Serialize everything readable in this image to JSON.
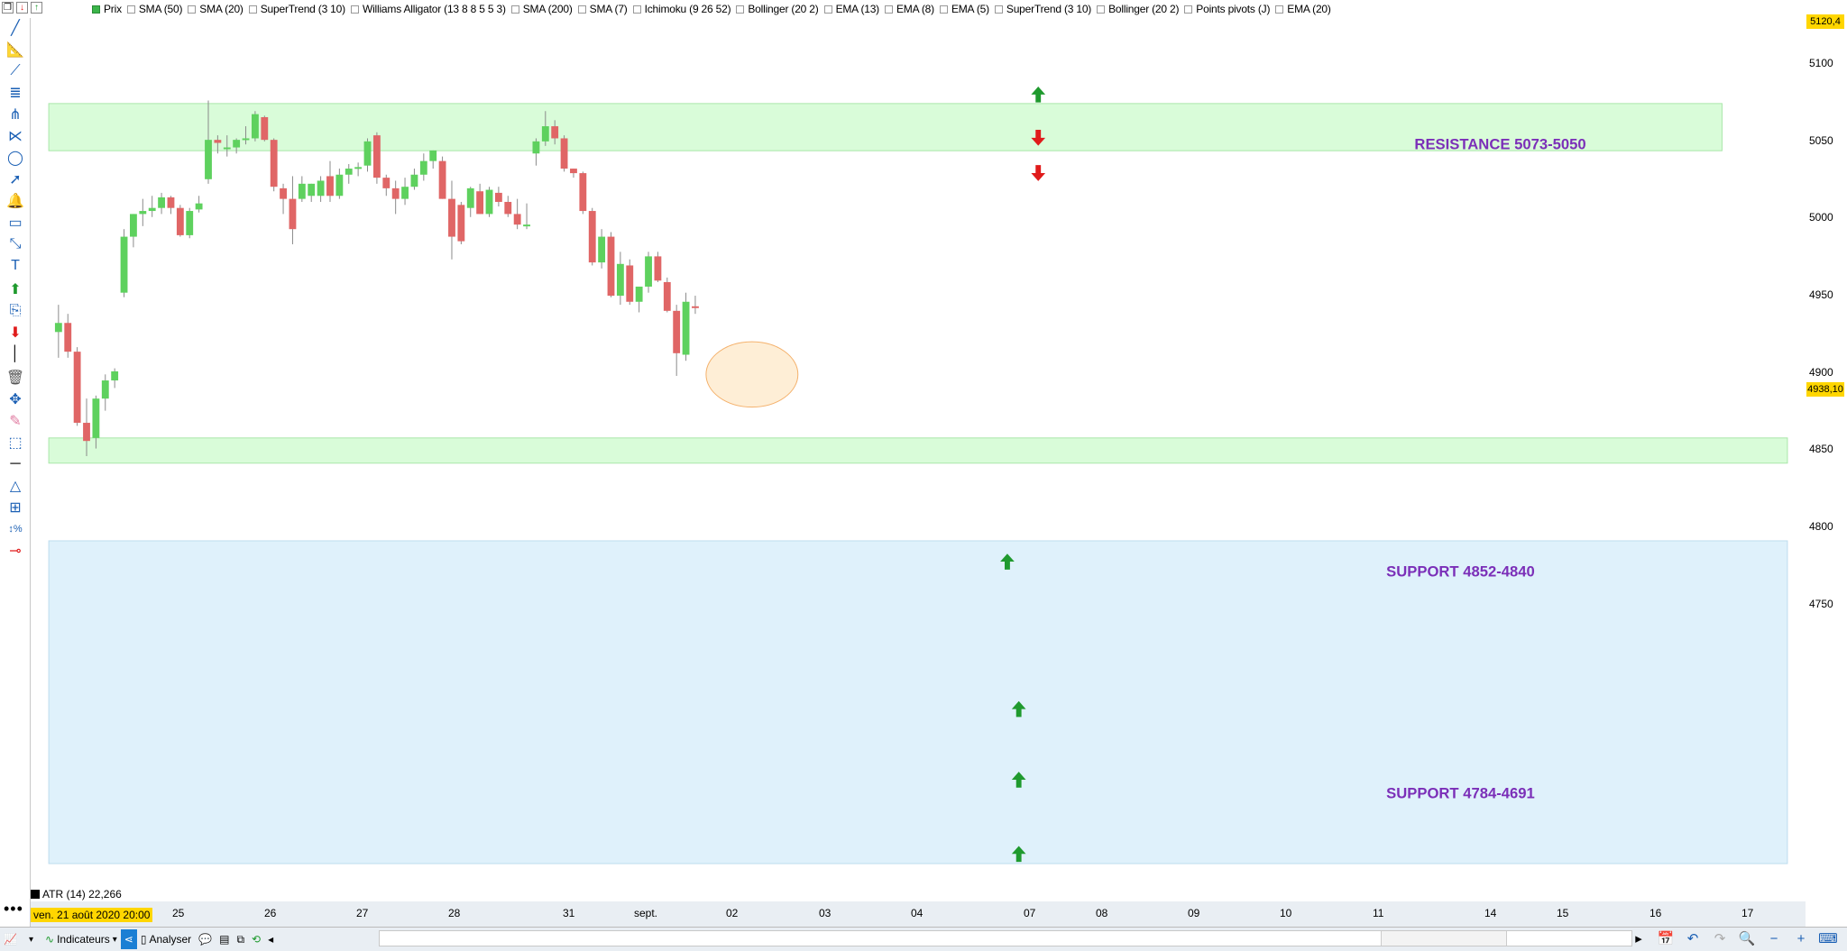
{
  "indicators": [
    {
      "label": "Prix",
      "checked": true
    },
    {
      "label": "SMA (50)",
      "checked": false
    },
    {
      "label": "SMA (20)",
      "checked": false
    },
    {
      "label": "SuperTrend (3 10)",
      "checked": false
    },
    {
      "label": "Williams Alligator (13 8 8 5 5 3)",
      "checked": false
    },
    {
      "label": "SMA (200)",
      "checked": false
    },
    {
      "label": "SMA (7)",
      "checked": false
    },
    {
      "label": "Ichimoku (9 26 52)",
      "checked": false
    },
    {
      "label": "Bollinger (20 2)",
      "checked": false
    },
    {
      "label": "EMA (13)",
      "checked": false
    },
    {
      "label": "EMA (8)",
      "checked": false
    },
    {
      "label": "EMA (5)",
      "checked": false
    },
    {
      "label": "SuperTrend (3 10)",
      "checked": false
    },
    {
      "label": "Bollinger (20 2)",
      "checked": false
    },
    {
      "label": "Points pivots (J)",
      "checked": false
    },
    {
      "label": "EMA (20)",
      "checked": false
    }
  ],
  "price_axis": {
    "labels": [
      "5100",
      "5050",
      "5000",
      "4950",
      "4900",
      "4850",
      "4800",
      "4750"
    ],
    "top_tag": "5120,4",
    "current_tag": "4938,10"
  },
  "time_axis": {
    "date_box": "ven. 21 août 2020 20:00",
    "labels": [
      "25",
      "26",
      "27",
      "28",
      "31",
      "sept.",
      "02",
      "03",
      "04",
      "07",
      "08",
      "09",
      "10",
      "11",
      "14",
      "15",
      "16",
      "17"
    ]
  },
  "zones": {
    "resistance": "RESISTANCE 5073-5050",
    "support1": "SUPPORT 4852-4840",
    "support2": "SUPPORT 4784-4691"
  },
  "atr_label": "ATR (14) 22,266",
  "bottom": {
    "indicators_label": "Indicateurs",
    "analyser_label": "Analyser"
  },
  "colors": {
    "bull": "#5ed15e",
    "bear": "#e06666",
    "zone_green": "#d9fcd9",
    "zone_blue": "#dff1fb",
    "zone_text": "#7b2fb8",
    "arrow_up": "#1f9a2e",
    "arrow_down": "#e01b1b"
  },
  "chart_data": {
    "type": "candlestick",
    "candles": [
      {
        "o": 4922,
        "h": 4940,
        "l": 4905,
        "c": 4928
      },
      {
        "o": 4928,
        "h": 4934,
        "l": 4905,
        "c": 4909
      },
      {
        "o": 4909,
        "h": 4912,
        "l": 4860,
        "c": 4862
      },
      {
        "o": 4862,
        "h": 4878,
        "l": 4840,
        "c": 4850
      },
      {
        "o": 4852,
        "h": 4880,
        "l": 4845,
        "c": 4878
      },
      {
        "o": 4878,
        "h": 4894,
        "l": 4870,
        "c": 4890
      },
      {
        "o": 4890,
        "h": 4898,
        "l": 4885,
        "c": 4896
      },
      {
        "o": 4948,
        "h": 4990,
        "l": 4945,
        "c": 4985
      },
      {
        "o": 4985,
        "h": 5000,
        "l": 4978,
        "c": 5000
      },
      {
        "o": 5000,
        "h": 5010,
        "l": 4992,
        "c": 5002
      },
      {
        "o": 5002,
        "h": 5012,
        "l": 4998,
        "c": 5004
      },
      {
        "o": 5004,
        "h": 5014,
        "l": 5000,
        "c": 5011
      },
      {
        "o": 5011,
        "h": 5012,
        "l": 5000,
        "c": 5004
      },
      {
        "o": 5004,
        "h": 5006,
        "l": 4985,
        "c": 4986
      },
      {
        "o": 4986,
        "h": 5004,
        "l": 4984,
        "c": 5002
      },
      {
        "o": 5003,
        "h": 5012,
        "l": 5001,
        "c": 5007
      },
      {
        "o": 5023,
        "h": 5075,
        "l": 5020,
        "c": 5049
      },
      {
        "o": 5049,
        "h": 5052,
        "l": 5040,
        "c": 5047
      },
      {
        "o": 5044,
        "h": 5052,
        "l": 5038,
        "c": 5044
      },
      {
        "o": 5044,
        "h": 5050,
        "l": 5040,
        "c": 5049
      },
      {
        "o": 5050,
        "h": 5058,
        "l": 5046,
        "c": 5050
      },
      {
        "o": 5050,
        "h": 5068,
        "l": 5048,
        "c": 5066
      },
      {
        "o": 5064,
        "h": 5065,
        "l": 5048,
        "c": 5049
      },
      {
        "o": 5049,
        "h": 5050,
        "l": 5015,
        "c": 5018
      },
      {
        "o": 5017,
        "h": 5020,
        "l": 5000,
        "c": 5010
      },
      {
        "o": 5010,
        "h": 5025,
        "l": 4980,
        "c": 4990
      },
      {
        "o": 5010,
        "h": 5025,
        "l": 5008,
        "c": 5020
      },
      {
        "o": 5012,
        "h": 5020,
        "l": 5008,
        "c": 5020
      },
      {
        "o": 5012,
        "h": 5025,
        "l": 5008,
        "c": 5022
      },
      {
        "o": 5025,
        "h": 5035,
        "l": 5008,
        "c": 5012
      },
      {
        "o": 5012,
        "h": 5030,
        "l": 5010,
        "c": 5026
      },
      {
        "o": 5026,
        "h": 5033,
        "l": 5020,
        "c": 5030
      },
      {
        "o": 5030,
        "h": 5034,
        "l": 5025,
        "c": 5031
      },
      {
        "o": 5032,
        "h": 5050,
        "l": 5028,
        "c": 5048
      },
      {
        "o": 5052,
        "h": 5054,
        "l": 5020,
        "c": 5024
      },
      {
        "o": 5024,
        "h": 5026,
        "l": 5012,
        "c": 5017
      },
      {
        "o": 5017,
        "h": 5022,
        "l": 5000,
        "c": 5010
      },
      {
        "o": 5010,
        "h": 5024,
        "l": 5006,
        "c": 5018
      },
      {
        "o": 5018,
        "h": 5030,
        "l": 5016,
        "c": 5026
      },
      {
        "o": 5026,
        "h": 5040,
        "l": 5022,
        "c": 5035
      },
      {
        "o": 5035,
        "h": 5042,
        "l": 5030,
        "c": 5042
      },
      {
        "o": 5035,
        "h": 5038,
        "l": 5010,
        "c": 5010
      },
      {
        "o": 5010,
        "h": 5022,
        "l": 4970,
        "c": 4985
      },
      {
        "o": 5006,
        "h": 5008,
        "l": 4980,
        "c": 4982
      },
      {
        "o": 5004,
        "h": 5018,
        "l": 4998,
        "c": 5017
      },
      {
        "o": 5015,
        "h": 5020,
        "l": 5000,
        "c": 5000
      },
      {
        "o": 5000,
        "h": 5018,
        "l": 4998,
        "c": 5016
      },
      {
        "o": 5014,
        "h": 5018,
        "l": 5005,
        "c": 5008
      },
      {
        "o": 5008,
        "h": 5012,
        "l": 4998,
        "c": 5000
      },
      {
        "o": 5000,
        "h": 5010,
        "l": 4990,
        "c": 4993
      },
      {
        "o": 4993,
        "h": 5007,
        "l": 4990,
        "c": 4993
      },
      {
        "o": 5040,
        "h": 5050,
        "l": 5032,
        "c": 5048
      },
      {
        "o": 5048,
        "h": 5068,
        "l": 5045,
        "c": 5058
      },
      {
        "o": 5058,
        "h": 5062,
        "l": 5046,
        "c": 5050
      },
      {
        "o": 5050,
        "h": 5052,
        "l": 5028,
        "c": 5030
      },
      {
        "o": 5030,
        "h": 5030,
        "l": 5024,
        "c": 5027
      },
      {
        "o": 5027,
        "h": 5028,
        "l": 5000,
        "c": 5002
      },
      {
        "o": 5002,
        "h": 5004,
        "l": 4966,
        "c": 4968
      },
      {
        "o": 4968,
        "h": 4990,
        "l": 4964,
        "c": 4985
      },
      {
        "o": 4985,
        "h": 4988,
        "l": 4945,
        "c": 4946
      },
      {
        "o": 4946,
        "h": 4975,
        "l": 4940,
        "c": 4967
      },
      {
        "o": 4966,
        "h": 4970,
        "l": 4940,
        "c": 4942
      },
      {
        "o": 4942,
        "h": 4950,
        "l": 4935,
        "c": 4952
      },
      {
        "o": 4952,
        "h": 4975,
        "l": 4948,
        "c": 4972
      },
      {
        "o": 4972,
        "h": 4975,
        "l": 4955,
        "c": 4956
      },
      {
        "o": 4955,
        "h": 4958,
        "l": 4935,
        "c": 4936
      },
      {
        "o": 4936,
        "h": 4940,
        "l": 4893,
        "c": 4908
      },
      {
        "o": 4907,
        "h": 4948,
        "l": 4903,
        "c": 4942
      },
      {
        "o": 4939,
        "h": 4946,
        "l": 4934,
        "c": 4938
      }
    ]
  }
}
